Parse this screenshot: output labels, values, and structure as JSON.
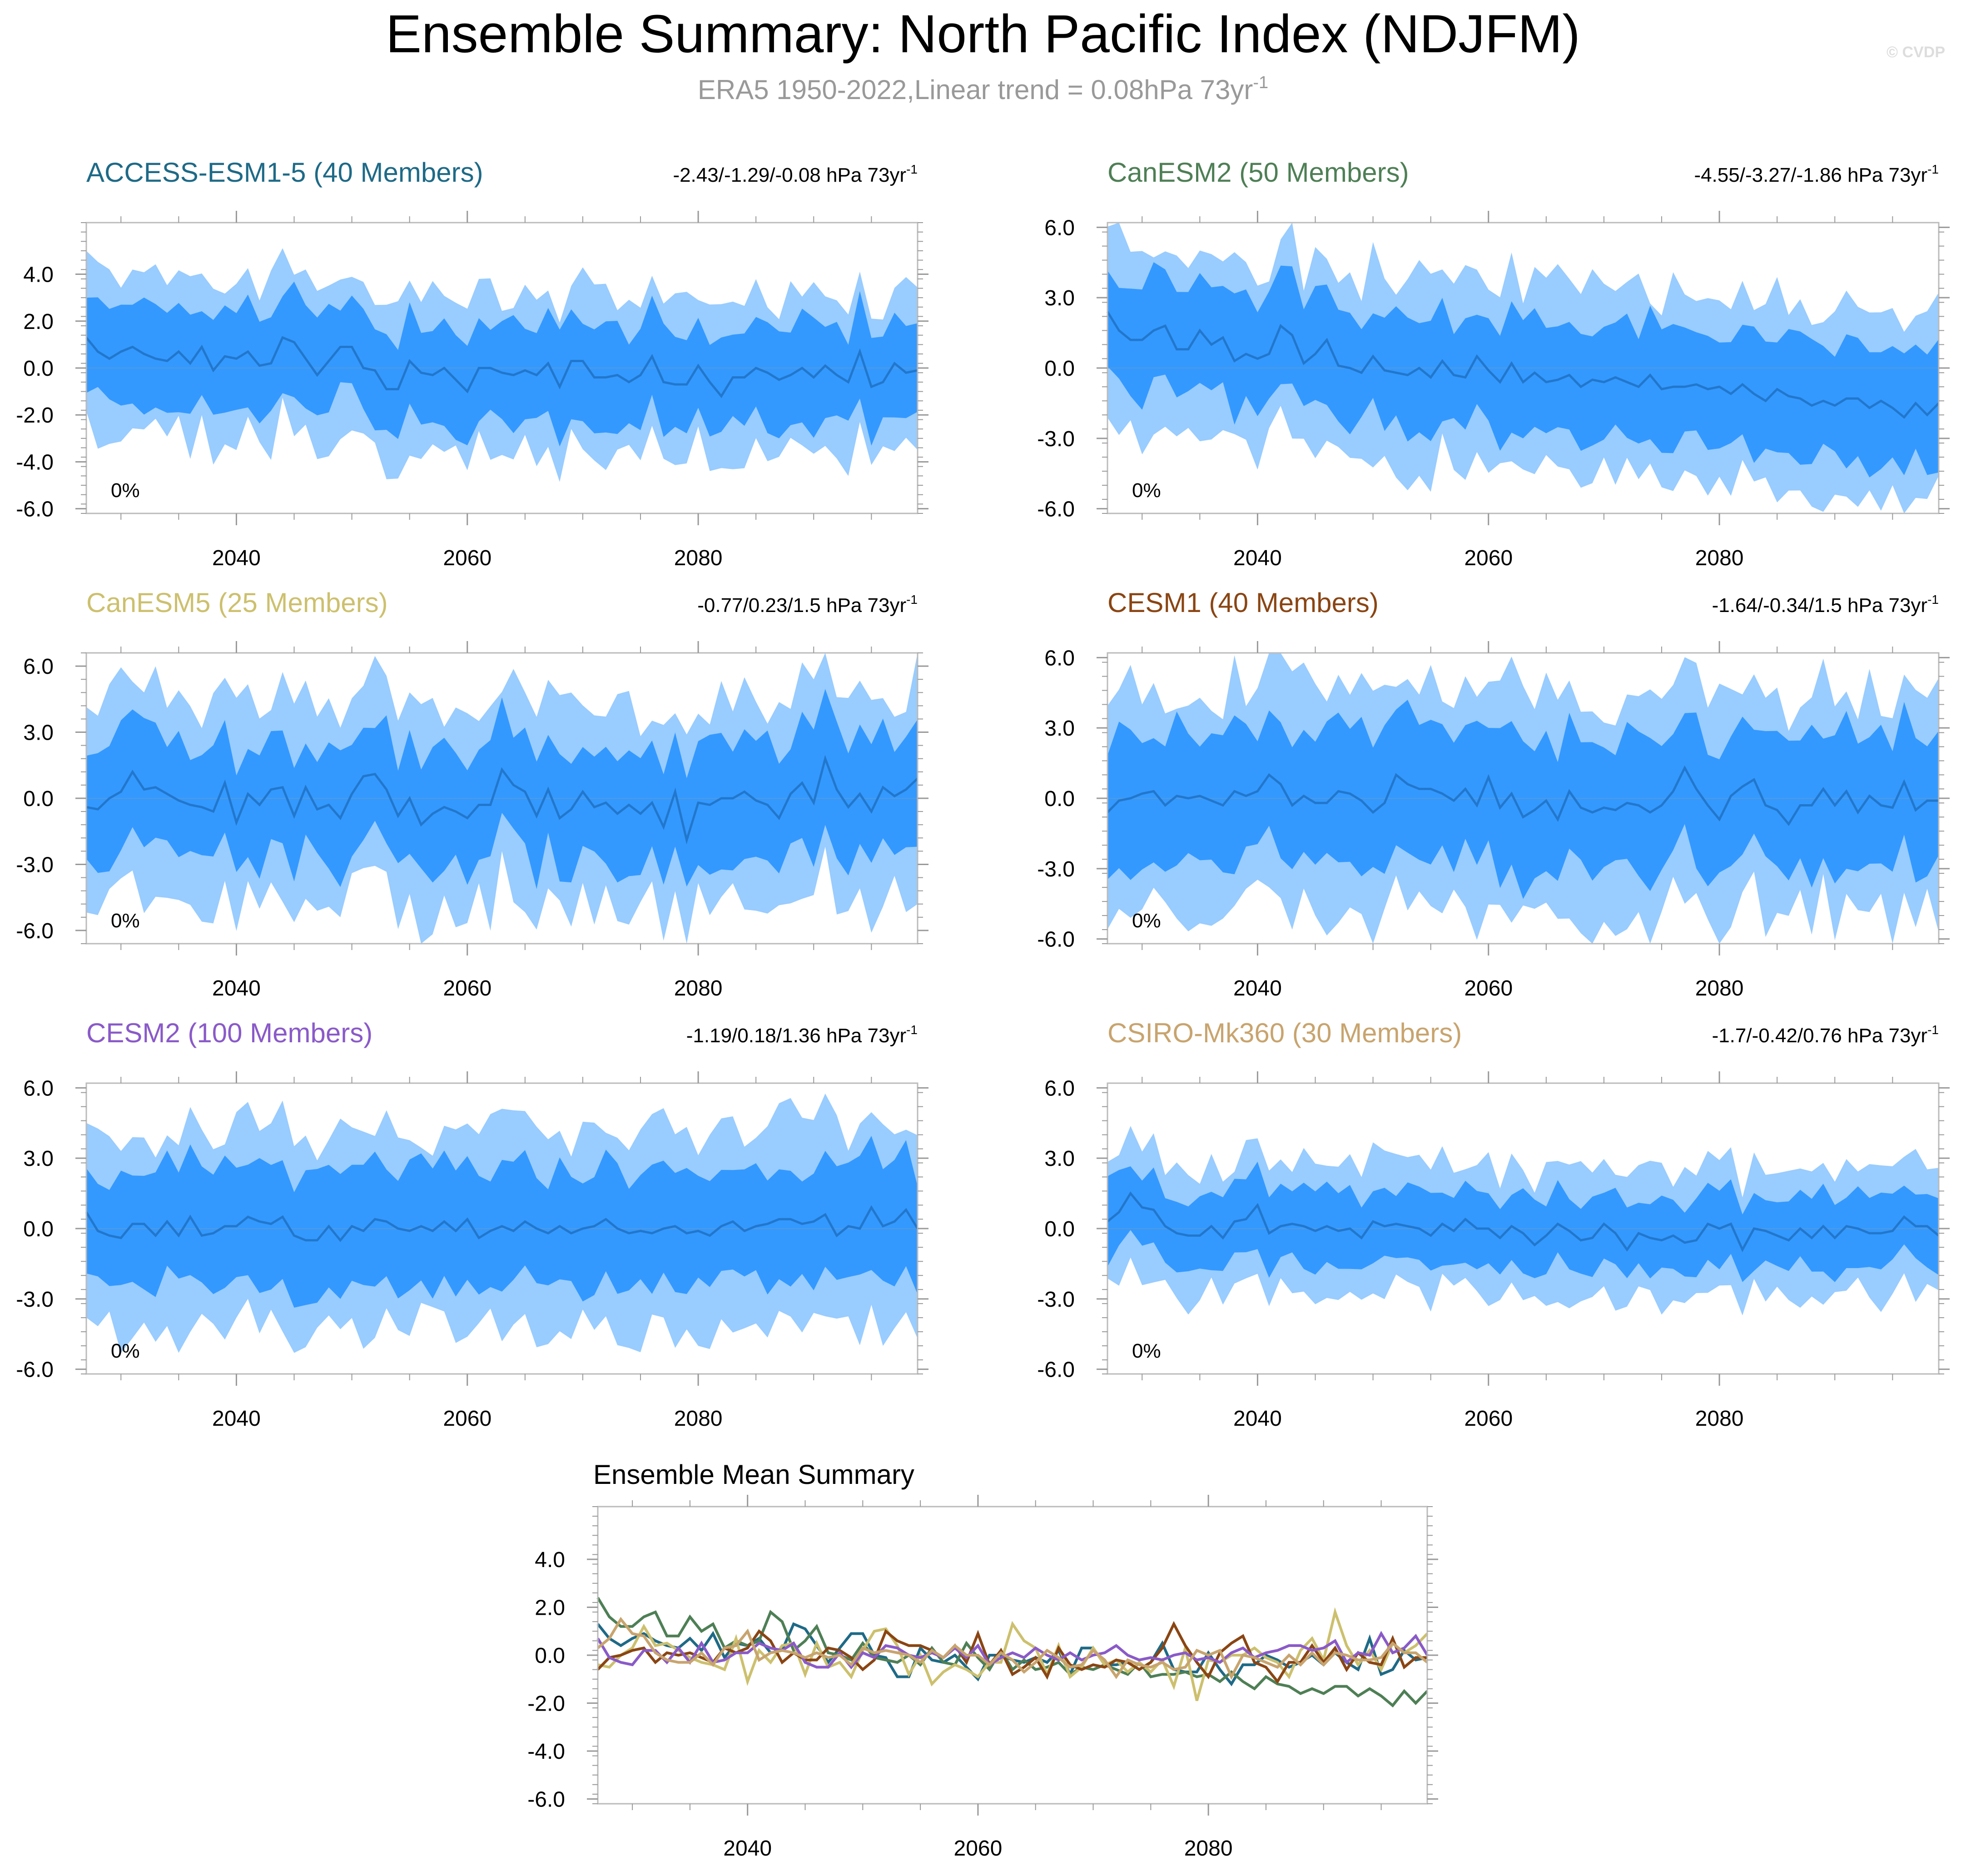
{
  "header": {
    "title": "Ensemble Summary: North Pacific Index (NDJFM)",
    "subtitle_prefix": "ERA5 1950-2022,Linear trend = 0.08hPa 73yr",
    "subtitle_sup": "-1",
    "watermark": "© CVDP"
  },
  "colors": {
    "outer_band": "#99ccff",
    "inner_band": "#3399ff",
    "mean_line": "#2277cc",
    "zero_line": "#5599dd",
    "axis": "#000000",
    "minor_tick": "#999999"
  },
  "chart_data": [
    {
      "type": "area",
      "model": "ACCESS-ESM1-5 (40 Members)",
      "title_color": "#1e6a87",
      "trend_text": "-2.43/-1.29/-0.08 hPa 73yr",
      "trend_sup": "-1",
      "percent_label": "0%",
      "x_start": 2027,
      "x_end": 2099,
      "xticks": [
        2040,
        2060,
        2080
      ],
      "ylim": [
        -6.2,
        6.2
      ],
      "yticks": [
        -6,
        -4,
        -2,
        0,
        2,
        4
      ],
      "ytick_labels": [
        "-6.0",
        "-4.0",
        "-2.0",
        "0.0",
        "2.0",
        "4.0"
      ],
      "mean": [
        1.3,
        0.7,
        0.4,
        0.7,
        0.9,
        0.6,
        0.4,
        0.3,
        0.7,
        0.2,
        0.9,
        -0.1,
        0.5,
        0.4,
        0.7,
        0.1,
        0.2,
        1.3,
        1.1,
        0.4,
        -0.3,
        0.3,
        0.9,
        0.9,
        0.0,
        -0.1,
        -0.9,
        -0.9,
        0.3,
        -0.2,
        -0.3,
        0.0,
        -0.5,
        -1.0,
        0.0,
        0.0,
        -0.2,
        -0.3,
        -0.1,
        -0.3,
        0.2,
        -0.8,
        0.3,
        0.3,
        -0.4,
        -0.4,
        -0.3,
        -0.6,
        -0.3,
        0.5,
        -0.6,
        -0.7,
        -0.7,
        0.1,
        -0.6,
        -1.2,
        -0.4,
        -0.4,
        0.0,
        -0.2,
        -0.5,
        -0.3,
        0.0,
        -0.4,
        0.1,
        -0.3,
        -0.6,
        0.7,
        -0.8,
        -0.6,
        0.2,
        -0.2,
        -0.1
      ],
      "inner_amp": 2.0,
      "outer_amp": 3.2
    },
    {
      "type": "area",
      "model": "CanESM2 (50 Members)",
      "title_color": "#4e7f55",
      "trend_text": "-4.55/-3.27/-1.86 hPa 73yr",
      "trend_sup": "-1",
      "percent_label": "0%",
      "x_start": 2027,
      "x_end": 2099,
      "xticks": [
        2040,
        2060,
        2080
      ],
      "ylim": [
        -6.2,
        6.2
      ],
      "yticks": [
        -6,
        -3,
        0,
        3,
        6
      ],
      "ytick_labels": [
        "-6.0",
        "-3.0",
        "0.0",
        "3.0",
        "6.0"
      ],
      "mean": [
        2.4,
        1.6,
        1.2,
        1.2,
        1.6,
        1.8,
        0.8,
        0.8,
        1.6,
        1.0,
        1.3,
        0.3,
        0.6,
        0.4,
        0.6,
        1.8,
        1.4,
        0.2,
        0.6,
        1.2,
        0.1,
        0.0,
        -0.2,
        0.5,
        -0.1,
        -0.2,
        -0.3,
        0.0,
        -0.4,
        0.3,
        -0.3,
        -0.4,
        0.5,
        -0.1,
        -0.6,
        0.2,
        -0.6,
        -0.2,
        -0.6,
        -0.5,
        -0.3,
        -0.8,
        -0.5,
        -0.6,
        -0.4,
        -0.6,
        -0.8,
        -0.3,
        -0.9,
        -0.8,
        -0.8,
        -0.7,
        -0.9,
        -0.8,
        -1.1,
        -0.7,
        -1.1,
        -1.4,
        -0.9,
        -1.2,
        -1.3,
        -1.6,
        -1.4,
        -1.6,
        -1.3,
        -1.3,
        -1.7,
        -1.4,
        -1.7,
        -2.1,
        -1.5,
        -2.0,
        -1.5
      ],
      "inner_amp": 2.3,
      "outer_amp": 3.8
    },
    {
      "type": "area",
      "model": "CanESM5 (25 Members)",
      "title_color": "#cdc06e",
      "trend_text": "-0.77/0.23/1.5 hPa 73yr",
      "trend_sup": "-1",
      "percent_label": "0%",
      "x_start": 2027,
      "x_end": 2099,
      "xticks": [
        2040,
        2060,
        2080
      ],
      "ylim": [
        -6.6,
        6.6
      ],
      "yticks": [
        -6,
        -3,
        0,
        3,
        6
      ],
      "ytick_labels": [
        "-6.0",
        "-3.0",
        "0.0",
        "3.0",
        "6.0"
      ],
      "mean": [
        -0.4,
        -0.5,
        0.0,
        0.3,
        1.2,
        0.4,
        0.5,
        0.2,
        -0.1,
        -0.3,
        -0.4,
        -0.6,
        0.7,
        -1.1,
        0.2,
        -0.3,
        0.4,
        0.5,
        -0.8,
        0.5,
        -0.5,
        -0.3,
        -0.9,
        0.2,
        1.0,
        1.1,
        0.4,
        -0.8,
        0.0,
        -1.2,
        -0.7,
        -0.4,
        -0.6,
        -0.9,
        -0.3,
        -0.3,
        1.3,
        0.6,
        0.3,
        -0.8,
        0.4,
        -0.9,
        -0.5,
        0.3,
        -0.4,
        -0.2,
        -0.7,
        -0.3,
        -0.7,
        -0.2,
        -1.3,
        0.3,
        -1.9,
        -0.2,
        -0.3,
        0.0,
        0.0,
        0.3,
        -0.1,
        -0.3,
        -0.9,
        0.2,
        0.7,
        -0.2,
        1.8,
        0.4,
        -0.4,
        0.2,
        -0.6,
        0.5,
        0.1,
        0.4,
        0.9
      ],
      "inner_amp": 2.6,
      "outer_amp": 4.4
    },
    {
      "type": "area",
      "model": "CESM1 (40 Members)",
      "title_color": "#8a4513",
      "trend_text": "-1.64/-0.34/1.5 hPa 73yr",
      "trend_sup": "-1",
      "percent_label": "0%",
      "x_start": 2027,
      "x_end": 2099,
      "xticks": [
        2040,
        2060,
        2080
      ],
      "ylim": [
        -6.2,
        6.2
      ],
      "yticks": [
        -6,
        -3,
        0,
        3,
        6
      ],
      "ytick_labels": [
        "-6.0",
        "-3.0",
        "0.0",
        "3.0",
        "6.0"
      ],
      "mean": [
        -0.6,
        -0.1,
        0.0,
        0.2,
        0.3,
        -0.3,
        0.1,
        0.0,
        0.1,
        -0.1,
        -0.3,
        0.3,
        0.1,
        0.3,
        1.0,
        0.6,
        -0.3,
        0.1,
        -0.2,
        -0.2,
        0.3,
        0.2,
        -0.1,
        -0.6,
        -0.2,
        1.0,
        0.6,
        0.4,
        0.4,
        0.2,
        -0.1,
        0.4,
        -0.3,
        0.9,
        -0.4,
        0.2,
        -0.8,
        -0.5,
        -0.1,
        -0.9,
        0.3,
        -0.4,
        -0.6,
        -0.4,
        -0.5,
        -0.2,
        -0.3,
        -0.6,
        -0.3,
        0.3,
        1.3,
        0.4,
        -0.3,
        -0.9,
        0.1,
        0.5,
        0.8,
        -0.3,
        -0.5,
        -1.1,
        -0.3,
        -0.3,
        0.4,
        -0.3,
        0.3,
        -0.6,
        0.1,
        -0.3,
        -0.4,
        0.7,
        -0.5,
        -0.1,
        -0.1
      ],
      "inner_amp": 2.8,
      "outer_amp": 4.5
    },
    {
      "type": "area",
      "model": "CESM2 (100 Members)",
      "title_color": "#8a5ac8",
      "trend_text": "-1.19/0.18/1.36 hPa 73yr",
      "trend_sup": "-1",
      "percent_label": "0%",
      "x_start": 2027,
      "x_end": 2099,
      "xticks": [
        2040,
        2060,
        2080
      ],
      "ylim": [
        -6.2,
        6.2
      ],
      "yticks": [
        -6,
        -3,
        0,
        3,
        6
      ],
      "ytick_labels": [
        "-6.0",
        "-3.0",
        "0.0",
        "3.0",
        "6.0"
      ],
      "mean": [
        0.7,
        -0.1,
        -0.3,
        -0.4,
        0.2,
        0.2,
        -0.3,
        0.3,
        -0.3,
        0.5,
        -0.3,
        -0.2,
        0.1,
        0.1,
        0.5,
        0.3,
        0.2,
        0.5,
        -0.3,
        -0.5,
        -0.5,
        0.1,
        -0.5,
        0.1,
        -0.1,
        0.4,
        0.3,
        0.0,
        -0.1,
        0.1,
        -0.1,
        0.3,
        -0.1,
        0.4,
        -0.4,
        -0.1,
        0.1,
        -0.1,
        0.3,
        0.0,
        -0.2,
        0.1,
        -0.2,
        0.0,
        0.1,
        0.4,
        0.0,
        -0.2,
        -0.1,
        -0.2,
        0.0,
        0.1,
        -0.2,
        -0.1,
        -0.3,
        0.1,
        0.3,
        -0.1,
        0.1,
        0.2,
        0.4,
        0.4,
        0.2,
        0.3,
        0.6,
        -0.3,
        0.1,
        0.0,
        0.9,
        0.1,
        0.3,
        0.8,
        0.0
      ],
      "inner_amp": 2.4,
      "outer_amp": 4.0
    },
    {
      "type": "area",
      "model": "CSIRO-Mk360 (30 Members)",
      "title_color": "#c8a46e",
      "trend_text": "-1.7/-0.42/0.76 hPa 73yr",
      "trend_sup": "-1",
      "percent_label": "0%",
      "x_start": 2027,
      "x_end": 2099,
      "xticks": [
        2040,
        2060,
        2080
      ],
      "ylim": [
        -6.2,
        6.2
      ],
      "yticks": [
        -6,
        -3,
        0,
        3,
        6
      ],
      "ytick_labels": [
        "-6.0",
        "-3.0",
        "0.0",
        "3.0",
        "6.0"
      ],
      "mean": [
        0.3,
        0.7,
        1.5,
        0.9,
        0.8,
        0.1,
        -0.2,
        -0.3,
        -0.3,
        0.1,
        -0.4,
        0.3,
        0.4,
        1.0,
        -0.2,
        0.1,
        0.2,
        0.1,
        -0.1,
        0.1,
        -0.1,
        0.0,
        -0.4,
        0.3,
        0.1,
        0.2,
        0.1,
        0.0,
        -0.3,
        0.2,
        -0.1,
        0.4,
        0.0,
        0.0,
        -0.4,
        0.1,
        -0.2,
        -0.7,
        -0.3,
        0.2,
        -0.1,
        -0.5,
        -0.4,
        0.2,
        -0.2,
        -0.9,
        -0.2,
        -0.4,
        -0.5,
        -0.3,
        -0.6,
        -0.5,
        0.2,
        0.0,
        0.2,
        -0.9,
        0.0,
        -0.1,
        -0.3,
        -0.5,
        0.0,
        -0.4,
        0.1,
        -0.4,
        0.1,
        0.0,
        -0.2,
        -0.2,
        -0.1,
        0.5,
        0.1,
        0.1,
        -0.3
      ],
      "inner_amp": 1.5,
      "outer_amp": 2.6
    }
  ],
  "summary": {
    "title": "Ensemble Mean Summary",
    "x_start": 2027,
    "x_end": 2099,
    "xticks": [
      2040,
      2060,
      2080
    ],
    "ylim": [
      -6.2,
      6.2
    ],
    "yticks": [
      -6,
      -4,
      -2,
      0,
      2,
      4
    ],
    "ytick_labels": [
      "-6.0",
      "-4.0",
      "-2.0",
      "0.0",
      "2.0",
      "4.0"
    ],
    "series_colors": [
      "#1e6a87",
      "#4e7f55",
      "#cdc06e",
      "#8a4513",
      "#8a5ac8",
      "#c8a46e"
    ]
  }
}
